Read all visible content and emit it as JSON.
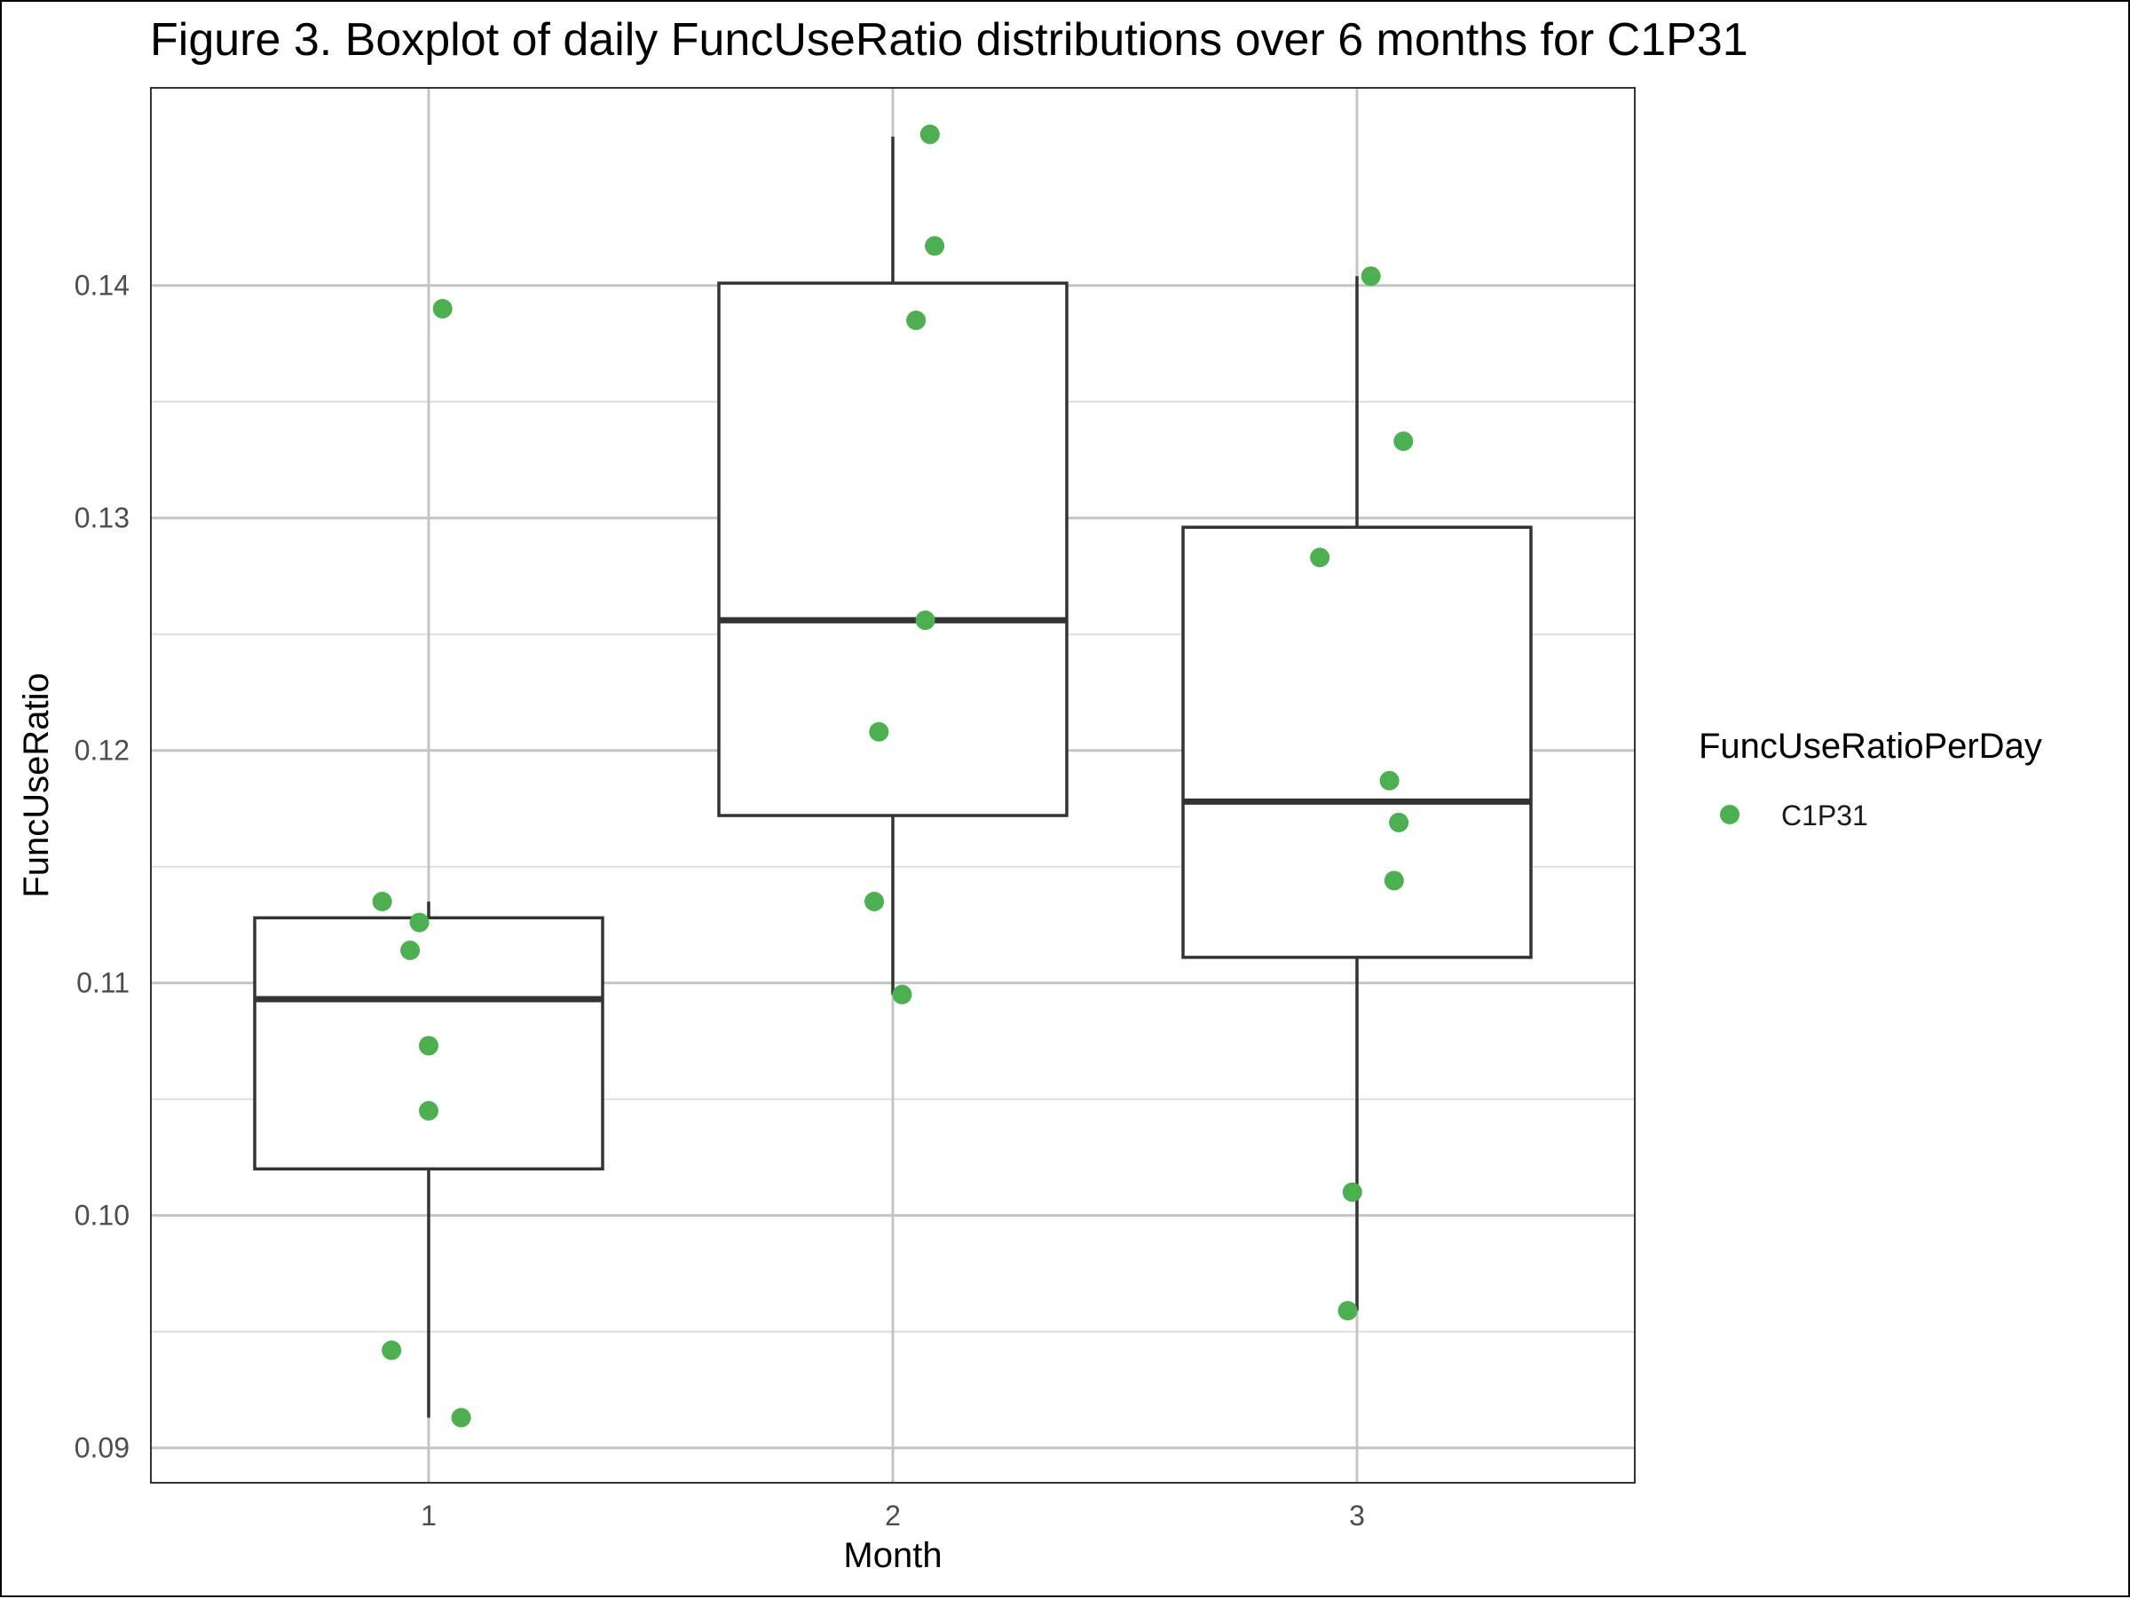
{
  "chart_data": {
    "type": "box",
    "title": "Figure 3. Boxplot of daily FuncUseRatio distributions over 6 months for C1P31",
    "xlabel": "Month",
    "ylabel": "FuncUseRatio",
    "ylim": [
      0.0885,
      0.1485
    ],
    "yticks": [
      "0.09",
      "0.10",
      "0.11",
      "0.12",
      "0.13",
      "0.14"
    ],
    "ytick_values": [
      0.09,
      0.1,
      0.11,
      0.12,
      0.13,
      0.14
    ],
    "categories": [
      "1",
      "2",
      "3"
    ],
    "boxes": [
      {
        "category": "1",
        "whisker_low": 0.0913,
        "q1": 0.102,
        "median": 0.1093,
        "q3": 0.1128,
        "whisker_high": 0.1135
      },
      {
        "category": "2",
        "whisker_low": 0.1095,
        "q1": 0.1172,
        "median": 0.1256,
        "q3": 0.1401,
        "whisker_high": 0.1464
      },
      {
        "category": "3",
        "whisker_low": 0.0959,
        "q1": 0.1111,
        "median": 0.1178,
        "q3": 0.1296,
        "whisker_high": 0.1404
      }
    ],
    "series": [
      {
        "name": "C1P31",
        "color": "#4caf50",
        "points": [
          {
            "x": 0.9,
            "y": 0.1135
          },
          {
            "x": 0.98,
            "y": 0.1126
          },
          {
            "x": 0.96,
            "y": 0.1114
          },
          {
            "x": 1.0,
            "y": 0.1073
          },
          {
            "x": 1.0,
            "y": 0.1045
          },
          {
            "x": 0.92,
            "y": 0.0942
          },
          {
            "x": 1.07,
            "y": 0.0913
          },
          {
            "x": 1.03,
            "y": 0.139
          },
          {
            "x": 2.08,
            "y": 0.1465
          },
          {
            "x": 2.09,
            "y": 0.1417
          },
          {
            "x": 2.05,
            "y": 0.1385
          },
          {
            "x": 2.07,
            "y": 0.1256
          },
          {
            "x": 1.97,
            "y": 0.1208
          },
          {
            "x": 1.96,
            "y": 0.1135
          },
          {
            "x": 2.02,
            "y": 0.1095
          },
          {
            "x": 3.03,
            "y": 0.1404
          },
          {
            "x": 3.1,
            "y": 0.1333
          },
          {
            "x": 2.92,
            "y": 0.1283
          },
          {
            "x": 3.07,
            "y": 0.1187
          },
          {
            "x": 3.09,
            "y": 0.1169
          },
          {
            "x": 3.08,
            "y": 0.1144
          },
          {
            "x": 2.99,
            "y": 0.101
          },
          {
            "x": 2.98,
            "y": 0.0959
          }
        ]
      }
    ],
    "legend": {
      "title": "FuncUseRatioPerDay",
      "position": "right"
    },
    "grid": true,
    "panel_border": true
  }
}
